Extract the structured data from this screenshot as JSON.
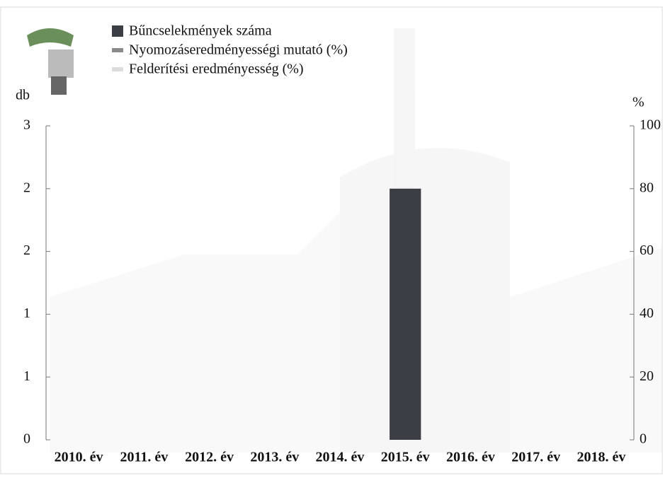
{
  "chart_data": {
    "type": "bar",
    "categories": [
      "2010. év",
      "2011. év",
      "2012. év",
      "2013. év",
      "2014. év",
      "2015. év",
      "2016. év",
      "2017. év",
      "2018. év"
    ],
    "y_label": "db",
    "y2_label": "%",
    "series": [
      {
        "name": "Bűncselekmények száma",
        "color": "#3b3e45",
        "values": [
          0,
          0,
          0,
          0,
          0,
          2.4,
          0,
          0,
          0
        ]
      },
      {
        "name": "Nyomozáseredményességi mutató (%)",
        "color": "#8a8a8a",
        "axis": "y2",
        "values": [
          null,
          null,
          null,
          null,
          null,
          null,
          null,
          null,
          null
        ]
      },
      {
        "name": "Felderítési eredményesség (%)",
        "color": "#dcdcdc",
        "axis": "y2",
        "values": [
          null,
          null,
          null,
          null,
          null,
          null,
          null,
          null,
          null
        ]
      }
    ],
    "ylim": [
      0,
      3
    ],
    "yticks": [
      0,
      {
        "value": 0.6,
        "label": "1"
      },
      {
        "value": 1.2,
        "label": "1"
      },
      {
        "value": 1.8,
        "label": "2"
      },
      {
        "value": 2.4,
        "label": "2"
      },
      3
    ],
    "y2lim": [
      0,
      100
    ],
    "y2ticks": [
      0,
      20,
      40,
      60,
      80,
      100
    ],
    "grid": false
  }
}
